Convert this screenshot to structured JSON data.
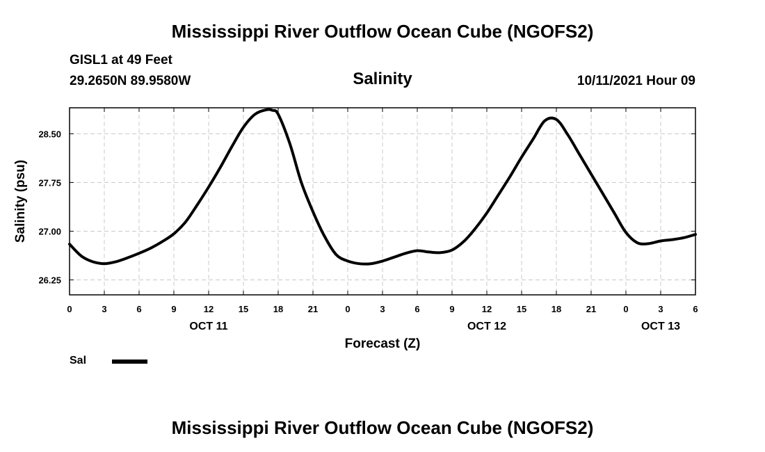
{
  "chart_data": {
    "type": "line",
    "title": "Mississippi River Outflow Ocean Cube (NGOFS2)",
    "footer_title": "Mississippi River Outflow Ocean Cube (NGOFS2)",
    "station": "GISL1 at 49 Feet",
    "location": "29.2650N  89.9580W",
    "subtitle": "Salinity",
    "timestamp": "10/11/2021 Hour 09",
    "xlabel": "Forecast (Z)",
    "ylabel": "Salinity (psu)",
    "xlim": [
      0,
      54
    ],
    "ylim": [
      26.02,
      28.9
    ],
    "grid": true,
    "x_tick_values": [
      0,
      3,
      6,
      9,
      12,
      15,
      18,
      21,
      24,
      27,
      30,
      33,
      36,
      39,
      42,
      45,
      48,
      51,
      54
    ],
    "x_tick_labels": [
      "0",
      "3",
      "6",
      "9",
      "12",
      "15",
      "18",
      "21",
      "0",
      "3",
      "6",
      "9",
      "12",
      "15",
      "18",
      "21",
      "0",
      "3",
      "6"
    ],
    "date_labels": [
      {
        "x": 12,
        "label": "OCT 11"
      },
      {
        "x": 36,
        "label": "OCT 12"
      },
      {
        "x": 51,
        "label": "OCT 13"
      }
    ],
    "y_ticks": [
      26.25,
      27.0,
      27.75,
      28.5
    ],
    "y_tick_labels": [
      "26.25",
      "27.00",
      "27.75",
      "28.50"
    ],
    "legend": [
      {
        "name": "Sal",
        "color": "#000000"
      }
    ],
    "series": [
      {
        "name": "Sal",
        "color": "#000000",
        "x": [
          0,
          1,
          2,
          3,
          4,
          5,
          6,
          7,
          8,
          9,
          10,
          11,
          12,
          13,
          14,
          15,
          16,
          17,
          17.5,
          18,
          19,
          20,
          21,
          22,
          23,
          24,
          25,
          26,
          27,
          28,
          29,
          30,
          31,
          32,
          33,
          34,
          35,
          36,
          37,
          38,
          39,
          40,
          41,
          42,
          43,
          44,
          45,
          46,
          47,
          48,
          49,
          50,
          51,
          52,
          53,
          54
        ],
        "y": [
          26.8,
          26.62,
          26.53,
          26.5,
          26.53,
          26.59,
          26.66,
          26.74,
          26.84,
          26.96,
          27.14,
          27.4,
          27.68,
          27.98,
          28.3,
          28.6,
          28.8,
          28.87,
          28.86,
          28.8,
          28.35,
          27.75,
          27.3,
          26.92,
          26.64,
          26.54,
          26.5,
          26.5,
          26.54,
          26.6,
          26.66,
          26.7,
          26.68,
          26.67,
          26.71,
          26.84,
          27.04,
          27.28,
          27.56,
          27.84,
          28.14,
          28.42,
          28.7,
          28.72,
          28.48,
          28.18,
          27.88,
          27.58,
          27.28,
          26.98,
          26.82,
          26.81,
          26.85,
          26.87,
          26.9,
          26.95
        ]
      }
    ]
  },
  "colors": {
    "line": "#000000",
    "grid": "#c8c8c8",
    "frame": "#000000",
    "background": "#ffffff"
  }
}
